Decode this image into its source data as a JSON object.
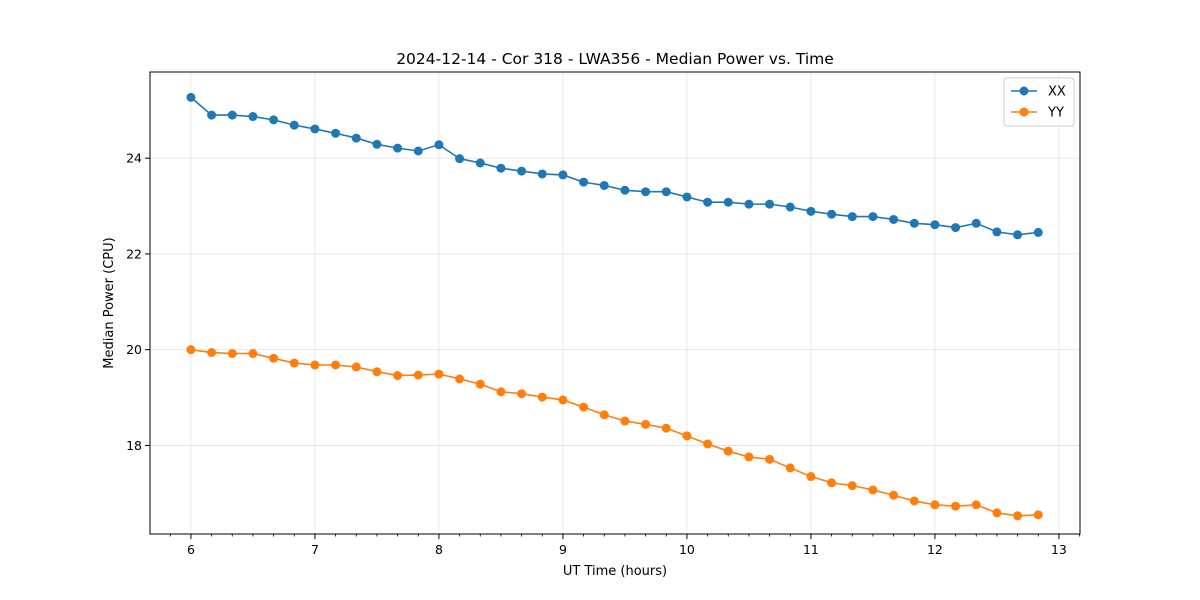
{
  "chart_data": {
    "type": "line",
    "title": "2024-12-14 - Cor 318 - LWA356 - Median Power vs. Time",
    "xlabel": "UT Time (hours)",
    "ylabel": "Median Power (CPU)",
    "xlim": [
      5.67,
      13.17
    ],
    "ylim": [
      16.15,
      25.8
    ],
    "xticks": [
      6,
      7,
      8,
      9,
      10,
      11,
      12,
      13
    ],
    "xtick_labels": [
      "6",
      "7",
      "8",
      "9",
      "10",
      "11",
      "12",
      "13"
    ],
    "yticks": [
      18,
      20,
      22,
      24
    ],
    "ytick_labels": [
      "18",
      "20",
      "22",
      "24"
    ],
    "grid": true,
    "legend_position": "top-right",
    "x": [
      6.0,
      6.1667,
      6.3333,
      6.5,
      6.6667,
      6.8333,
      7.0,
      7.1667,
      7.3333,
      7.5,
      7.6667,
      7.8333,
      8.0,
      8.1667,
      8.3333,
      8.5,
      8.6667,
      8.8333,
      9.0,
      9.1667,
      9.3333,
      9.5,
      9.6667,
      9.8333,
      10.0,
      10.1667,
      10.3333,
      10.5,
      10.6667,
      10.8333,
      11.0,
      11.1667,
      11.3333,
      11.5,
      11.6667,
      11.8333,
      12.0,
      12.1667,
      12.3333,
      12.5,
      12.6667,
      12.8333
    ],
    "series": [
      {
        "name": "XX",
        "color": "#1f77b4",
        "values": [
          25.27,
          24.9,
          24.9,
          24.87,
          24.8,
          24.69,
          24.61,
          24.52,
          24.42,
          24.29,
          24.21,
          24.15,
          24.28,
          23.99,
          23.9,
          23.79,
          23.73,
          23.67,
          23.65,
          23.5,
          23.43,
          23.33,
          23.3,
          23.3,
          23.19,
          23.08,
          23.08,
          23.04,
          23.04,
          22.98,
          22.89,
          22.83,
          22.78,
          22.78,
          22.72,
          22.64,
          22.61,
          22.55,
          22.64,
          22.46,
          22.4,
          22.45
        ]
      },
      {
        "name": "YY",
        "color": "#ff7f0e",
        "values": [
          20.0,
          19.94,
          19.92,
          19.92,
          19.82,
          19.72,
          19.68,
          19.68,
          19.64,
          19.54,
          19.46,
          19.47,
          19.49,
          19.39,
          19.28,
          19.12,
          19.08,
          19.01,
          18.95,
          18.8,
          18.64,
          18.51,
          18.44,
          18.36,
          18.2,
          18.03,
          17.88,
          17.76,
          17.71,
          17.53,
          17.35,
          17.22,
          17.16,
          17.07,
          16.96,
          16.84,
          16.76,
          16.73,
          16.76,
          16.59,
          16.53,
          16.55
        ]
      }
    ]
  }
}
